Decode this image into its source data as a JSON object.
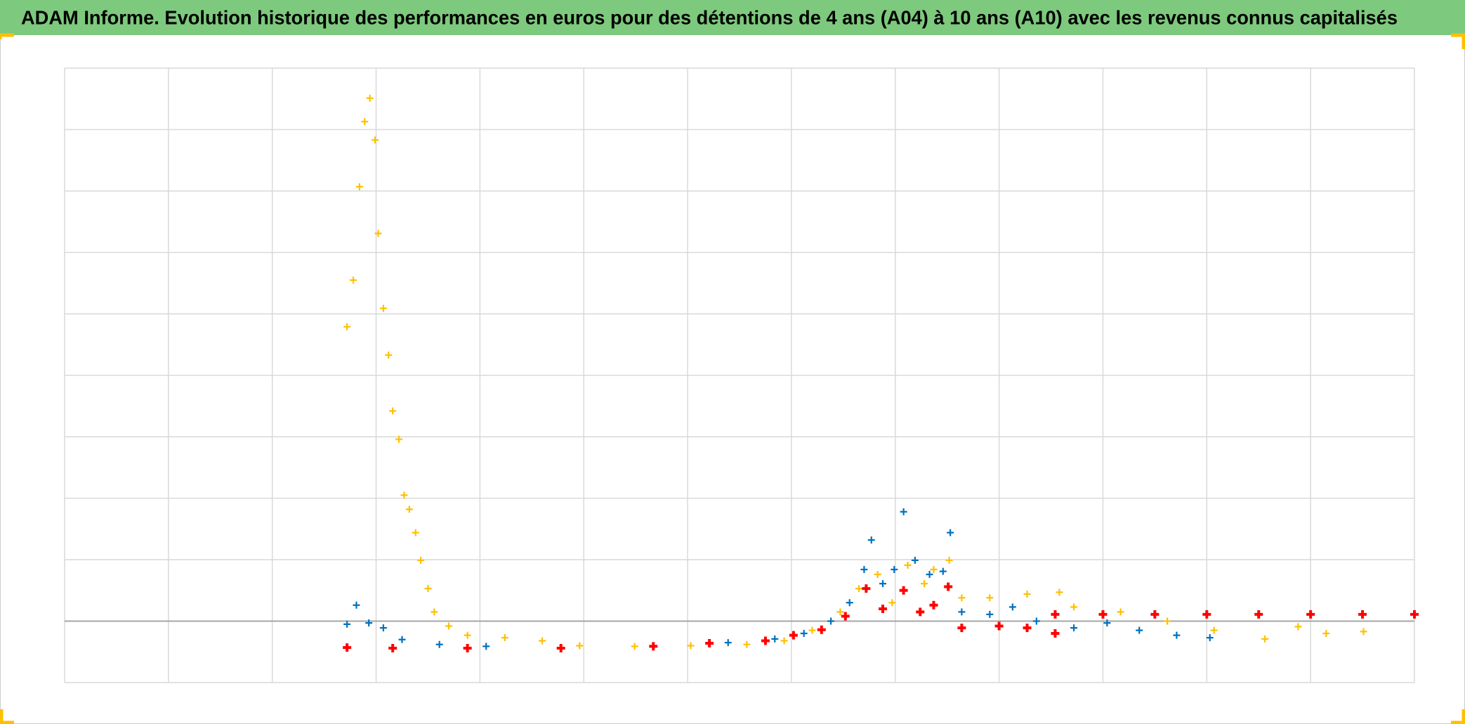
{
  "chart_data": {
    "type": "scatter",
    "title": "ADAM Informe. Evolution historique des performances en euros pour des détentions de 4 ans (A04) à 10 ans (A10) avec les revenus connus capitalisés",
    "xlim": [
      0,
      13
    ],
    "xticks": [
      0,
      1,
      2,
      3,
      4,
      5,
      6,
      7,
      8,
      9,
      10,
      11,
      12,
      13
    ],
    "ylim": [
      -1,
      9
    ],
    "yticks": [
      -1,
      0,
      1,
      2,
      3,
      4,
      5,
      6,
      7,
      8,
      9
    ],
    "grid": true,
    "series": [
      {
        "color": "#ffc000",
        "x": [
          2.72,
          2.78,
          2.84,
          2.89,
          2.94,
          2.99,
          3.02,
          3.07,
          3.12,
          3.16,
          3.22,
          3.27,
          3.32,
          3.38,
          3.43,
          3.5,
          3.56,
          3.7,
          3.88,
          4.24,
          4.6,
          4.96,
          5.49,
          6.03,
          6.57,
          6.93,
          7.2,
          7.47,
          7.65,
          7.83,
          7.97,
          8.12,
          8.28,
          8.37,
          8.52,
          8.64,
          8.91,
          9.27,
          9.58,
          9.72,
          10.17,
          10.62,
          11.07,
          11.56,
          11.88,
          12.15,
          12.51
        ],
        "values": [
          4.79,
          5.55,
          7.07,
          8.13,
          8.51,
          7.83,
          6.31,
          5.09,
          4.33,
          3.42,
          2.96,
          2.05,
          1.82,
          1.44,
          0.99,
          0.53,
          0.15,
          -0.08,
          -0.23,
          -0.27,
          -0.32,
          -0.4,
          -0.41,
          -0.4,
          -0.38,
          -0.32,
          -0.15,
          0.15,
          0.53,
          0.76,
          0.3,
          0.91,
          0.61,
          0.84,
          0.99,
          0.38,
          0.38,
          0.44,
          0.47,
          0.23,
          0.15,
          0.0,
          -0.15,
          -0.29,
          -0.09,
          -0.2,
          -0.17
        ]
      },
      {
        "color": "#0070c0",
        "x": [
          2.72,
          2.81,
          2.93,
          3.07,
          3.25,
          3.61,
          4.06,
          4.78,
          5.67,
          6.39,
          6.84,
          7.12,
          7.38,
          7.56,
          7.7,
          7.77,
          7.88,
          7.99,
          8.08,
          8.19,
          8.33,
          8.46,
          8.53,
          8.64,
          8.91,
          9.13,
          9.36,
          9.72,
          10.04,
          10.35,
          10.71,
          11.03
        ],
        "values": [
          -0.05,
          0.26,
          -0.03,
          -0.11,
          -0.3,
          -0.38,
          -0.41,
          -0.43,
          -0.4,
          -0.35,
          -0.29,
          -0.2,
          0.0,
          0.3,
          0.84,
          1.32,
          0.61,
          0.84,
          1.78,
          0.99,
          0.76,
          0.81,
          1.44,
          0.15,
          0.11,
          0.23,
          0.0,
          -0.11,
          -0.03,
          -0.15,
          -0.23,
          -0.27
        ]
      },
      {
        "color": "#ff0000",
        "x": [
          2.72,
          3.16,
          3.88,
          4.78,
          5.67,
          6.21,
          6.75,
          7.02,
          7.29,
          7.52,
          7.72,
          7.88,
          8.08,
          8.24,
          8.37,
          8.51,
          8.64,
          9.0,
          9.27,
          9.54,
          9.54,
          10.0,
          10.5,
          11.0,
          11.5,
          12.0,
          12.5,
          13.0
        ],
        "values": [
          -0.43,
          -0.44,
          -0.44,
          -0.44,
          -0.41,
          -0.36,
          -0.32,
          -0.23,
          -0.14,
          0.08,
          0.53,
          0.2,
          0.5,
          0.15,
          0.26,
          0.56,
          -0.11,
          -0.08,
          -0.11,
          -0.2,
          0.11,
          0.11,
          0.11,
          0.11,
          0.11,
          0.11,
          0.11,
          0.11
        ]
      }
    ]
  }
}
